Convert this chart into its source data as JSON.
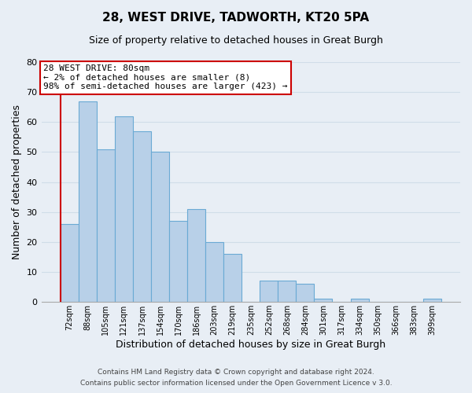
{
  "title": "28, WEST DRIVE, TADWORTH, KT20 5PA",
  "subtitle": "Size of property relative to detached houses in Great Burgh",
  "xlabel": "Distribution of detached houses by size in Great Burgh",
  "ylabel": "Number of detached properties",
  "footer_line1": "Contains HM Land Registry data © Crown copyright and database right 2024.",
  "footer_line2": "Contains public sector information licensed under the Open Government Licence v 3.0.",
  "bar_labels": [
    "72sqm",
    "88sqm",
    "105sqm",
    "121sqm",
    "137sqm",
    "154sqm",
    "170sqm",
    "186sqm",
    "203sqm",
    "219sqm",
    "235sqm",
    "252sqm",
    "268sqm",
    "284sqm",
    "301sqm",
    "317sqm",
    "334sqm",
    "350sqm",
    "366sqm",
    "383sqm",
    "399sqm"
  ],
  "bar_values": [
    26,
    67,
    51,
    62,
    57,
    50,
    27,
    31,
    20,
    16,
    0,
    7,
    7,
    6,
    1,
    0,
    1,
    0,
    0,
    0,
    1
  ],
  "bar_color": "#b8d0e8",
  "bar_edge_color": "#6aaad4",
  "highlight_bar_edge_color": "#cc0000",
  "annotation_title": "28 WEST DRIVE: 80sqm",
  "annotation_line1": "← 2% of detached houses are smaller (8)",
  "annotation_line2": "98% of semi-detached houses are larger (423) →",
  "annotation_box_facecolor": "#ffffff",
  "annotation_box_edgecolor": "#cc0000",
  "ylim": [
    0,
    80
  ],
  "yticks": [
    0,
    10,
    20,
    30,
    40,
    50,
    60,
    70,
    80
  ],
  "grid_color": "#d0dde8",
  "background_color": "#e8eef5"
}
